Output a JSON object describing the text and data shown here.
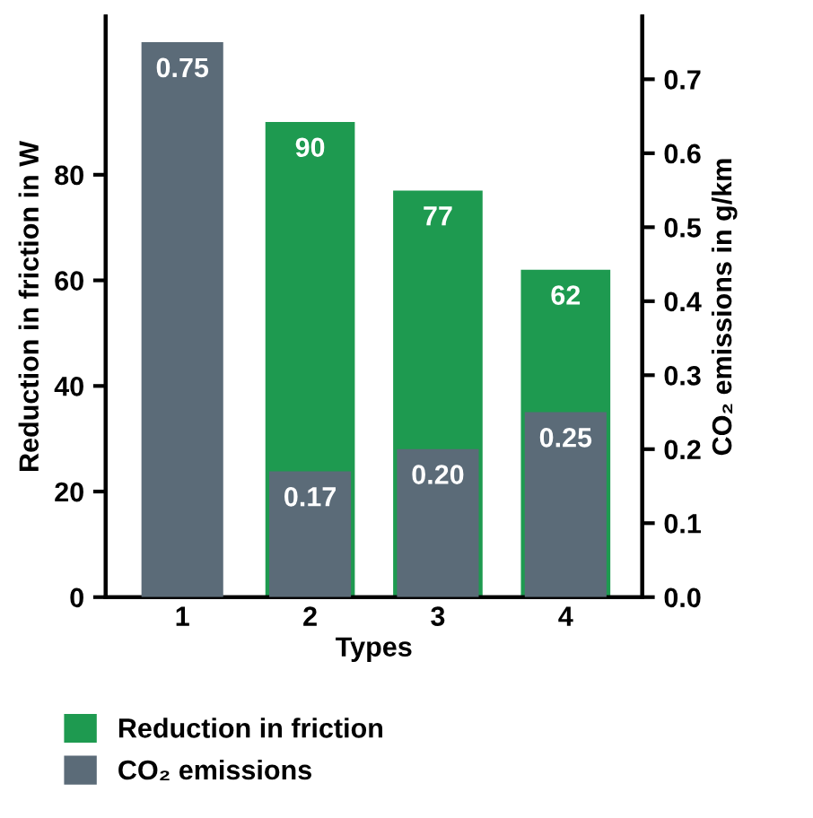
{
  "chart_data": {
    "type": "bar",
    "xlabel": "Types",
    "ylabel": "Reduction in friction in W",
    "y2label": "CO₂ emissions in g/km",
    "categories": [
      "1",
      "2",
      "3",
      "4"
    ],
    "series": [
      {
        "name": "Reduction in friction",
        "color": "#1e9a50",
        "values": [
          null,
          90,
          77,
          62
        ],
        "value_labels": [
          null,
          "90",
          "77",
          "62"
        ]
      },
      {
        "name": "CO₂ emissions",
        "color": "#5b6b78",
        "axis": "y2",
        "values": [
          0.75,
          0.17,
          0.2,
          0.25
        ],
        "value_labels": [
          "0.75",
          "0.17",
          "0.20",
          "0.25"
        ]
      }
    ],
    "ylim": [
      0,
      110
    ],
    "yticks": [
      0,
      20,
      40,
      60,
      80
    ],
    "y2lim": [
      0,
      0.785
    ],
    "y2ticks": [
      {
        "value": 0,
        "label": "0.0"
      },
      0.1,
      0.2,
      0.3,
      0.4,
      0.5,
      0.6,
      0.7
    ],
    "legend": "bottom left",
    "grid": false
  }
}
